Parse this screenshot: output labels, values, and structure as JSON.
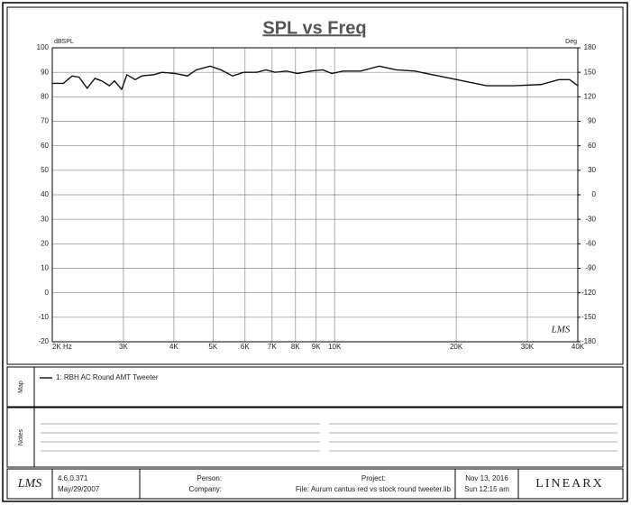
{
  "chart_data": {
    "type": "line",
    "title": "SPL vs Freq",
    "y_label": "dBSPL",
    "y2_label": "Deg",
    "xscale": "log",
    "x": [
      2000,
      2130,
      2240,
      2330,
      2440,
      2550,
      2650,
      2770,
      2850,
      2970,
      3060,
      3210,
      3330,
      3560,
      3740,
      4040,
      4320,
      4550,
      4920,
      5230,
      5590,
      5950,
      6420,
      6760,
      7120,
      7610,
      8090,
      8740,
      9350,
      9840,
      10500,
      11600,
      12900,
      14200,
      15800,
      17500,
      19400,
      21500,
      23800,
      27800,
      32400,
      35900,
      38200,
      40000
    ],
    "series": [
      {
        "name": "1: RBH AC Round AMT Tweeter",
        "color": "#111111",
        "values": [
          85.5,
          85.5,
          88.5,
          88,
          83.5,
          87.5,
          86.5,
          84.5,
          86.5,
          83,
          89,
          87,
          88.5,
          89,
          90,
          89.5,
          88.5,
          91,
          92.5,
          91,
          88.5,
          90,
          90,
          91,
          90,
          90.5,
          89.5,
          90.5,
          91,
          89.5,
          90.5,
          90.5,
          92.5,
          91,
          90.5,
          89,
          87.5,
          86,
          84.5,
          84.5,
          85,
          87,
          87,
          84.5
        ]
      }
    ],
    "xlim": [
      2000,
      40000
    ],
    "xticks": [
      {
        "value": 2000,
        "label": "2K  Hz"
      },
      {
        "value": 3000,
        "label": "3K"
      },
      {
        "value": 4000,
        "label": "4K"
      },
      {
        "value": 5000,
        "label": "5K"
      },
      {
        "value": 6000,
        "label": "6K"
      },
      {
        "value": 7000,
        "label": "7K"
      },
      {
        "value": 8000,
        "label": "8K"
      },
      {
        "value": 9000,
        "label": "9K"
      },
      {
        "value": 10000,
        "label": "10K"
      },
      {
        "value": 20000,
        "label": "20K"
      },
      {
        "value": 30000,
        "label": "30K"
      },
      {
        "value": 40000,
        "label": "40K"
      }
    ],
    "ylim": [
      -20,
      100
    ],
    "yticks": [
      -20,
      -10,
      0,
      10,
      20,
      30,
      40,
      50,
      60,
      70,
      80,
      90,
      100
    ],
    "y2lim": [
      -180,
      180
    ],
    "y2ticks": [
      -180,
      -150,
      -120,
      -90,
      -60,
      -30,
      0,
      30,
      60,
      90,
      120,
      150,
      180
    ],
    "grid": true,
    "watermark": "LMS"
  },
  "panels": {
    "map": "Map",
    "notes": "Notes"
  },
  "footer": {
    "logo": "LMS",
    "version": "4.6.0.371",
    "build_date": "May/29/2007",
    "person": "Person:",
    "company": "Company:",
    "project": "Project:",
    "file": "File: Aurum cantus red vs stock round tweeter.lib",
    "date": "Nov 13, 2016",
    "time": "Sun 12:15 am",
    "brand": "LINEARX"
  }
}
